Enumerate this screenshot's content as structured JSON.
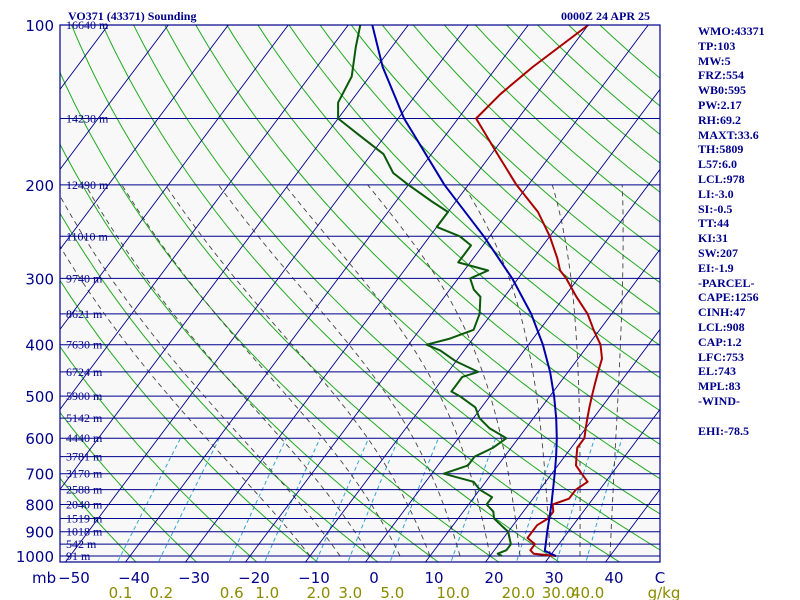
{
  "header": {
    "title": "VO371 (43371) Sounding",
    "datetime": "0000Z 24 APR 25"
  },
  "indices": [
    "WMO:43371",
    "TP:103",
    "MW:5",
    "FRZ:554",
    "WB0:595",
    "PW:2.17",
    "RH:69.2",
    "MAXT:33.6",
    "TH:5809",
    "L57:6.0",
    "LCL:978",
    "LI:-3.0",
    "SI:-0.5",
    "TT:44",
    "KI:31",
    "SW:207",
    "EI:-1.9",
    "-PARCEL-",
    "CAPE:1256",
    "CINH:47",
    "LCL:908",
    "CAP:1.2",
    "LFC:753",
    "EL:743",
    "MPL:83",
    "-WIND-",
    "",
    "EHI:-78.5"
  ],
  "colors": {
    "background": "#ffffff",
    "plot_area": "#f7f8f7",
    "isobar": "#00008b",
    "isotherm": "#00008b",
    "dry_adiabat": "#22aa22",
    "moist_adiabat": "#444444",
    "mixing_ratio": "#33a5d4",
    "temperature": "#aa0000",
    "dewpoint": "#0b5a0b",
    "parcel": "#0000aa",
    "text": "#00008b",
    "mixing_label": "#8b8b00"
  },
  "chart_data": {
    "type": "line",
    "subtype": "skew-t log-p sounding",
    "y_axis_scale": "log",
    "pressure_unit": "mb",
    "temperature_unit": "C",
    "mixing_ratio_unit": "g/kg",
    "xlim": [
      -50,
      50
    ],
    "ylim": [
      1000,
      100
    ],
    "pressure_ticks": [
      100,
      200,
      300,
      400,
      500,
      600,
      700,
      800,
      900,
      1000
    ],
    "temperature_ticks": [
      -50,
      -40,
      -30,
      -20,
      -10,
      0,
      10,
      20,
      30,
      40
    ],
    "mixing_ratio_ticks": [
      "0.1",
      "0.2",
      "0.6",
      "1.0",
      "2.0",
      "3.0",
      "5.0",
      "10.0",
      "20.0",
      "30.0",
      "40.0"
    ],
    "mixing_ratio_values": [
      0.1,
      0.2,
      0.6,
      1.0,
      2.0,
      3.0,
      5.0,
      10.0,
      20.0,
      30.0,
      40.0
    ],
    "height_levels": [
      {
        "p": 100,
        "label": "16640 m"
      },
      {
        "p": 150,
        "label": "14230 m"
      },
      {
        "p": 200,
        "label": "12490 m"
      },
      {
        "p": 250,
        "label": "11010 m"
      },
      {
        "p": 300,
        "label": "9740 m"
      },
      {
        "p": 350,
        "label": "8621 m"
      },
      {
        "p": 400,
        "label": "7630 m"
      },
      {
        "p": 450,
        "label": "6724 m"
      },
      {
        "p": 500,
        "label": "5900 m"
      },
      {
        "p": 550,
        "label": "5142 m"
      },
      {
        "p": 600,
        "label": "4440 m"
      },
      {
        "p": 650,
        "label": "3781 m"
      },
      {
        "p": 700,
        "label": "3170 m"
      },
      {
        "p": 750,
        "label": "2588 m"
      },
      {
        "p": 800,
        "label": "2040 m"
      },
      {
        "p": 850,
        "label": "1519 m"
      },
      {
        "p": 900,
        "label": "1018 m"
      },
      {
        "p": 950,
        "label": "542 m"
      },
      {
        "p": 1000,
        "label": "91 m"
      }
    ],
    "series": [
      {
        "key": "temperature",
        "points": [
          [
            1000,
            31
          ],
          [
            990,
            27
          ],
          [
            975,
            26
          ],
          [
            950,
            26
          ],
          [
            925,
            24
          ],
          [
            900,
            24
          ],
          [
            875,
            24
          ],
          [
            850,
            25
          ],
          [
            825,
            25
          ],
          [
            800,
            24
          ],
          [
            780,
            26
          ],
          [
            750,
            26
          ],
          [
            725,
            27
          ],
          [
            700,
            25
          ],
          [
            675,
            23
          ],
          [
            650,
            22
          ],
          [
            625,
            21
          ],
          [
            600,
            21
          ],
          [
            575,
            20
          ],
          [
            550,
            19
          ],
          [
            525,
            18
          ],
          [
            500,
            17
          ],
          [
            475,
            16
          ],
          [
            450,
            15
          ],
          [
            425,
            14
          ],
          [
            400,
            12
          ],
          [
            375,
            9
          ],
          [
            350,
            6
          ],
          [
            325,
            2
          ],
          [
            300,
            -2
          ],
          [
            290,
            -4
          ],
          [
            275,
            -6
          ],
          [
            250,
            -10
          ],
          [
            225,
            -15
          ],
          [
            200,
            -22
          ],
          [
            175,
            -29
          ],
          [
            150,
            -37
          ],
          [
            135,
            -36
          ],
          [
            120,
            -34
          ],
          [
            100,
            -30
          ]
        ]
      },
      {
        "key": "dewpoint",
        "points": [
          [
            1000,
            22
          ],
          [
            990,
            21
          ],
          [
            975,
            22
          ],
          [
            950,
            22
          ],
          [
            925,
            21
          ],
          [
            900,
            20
          ],
          [
            875,
            18
          ],
          [
            850,
            16
          ],
          [
            825,
            15
          ],
          [
            800,
            13
          ],
          [
            775,
            13
          ],
          [
            750,
            10
          ],
          [
            725,
            8
          ],
          [
            700,
            2
          ],
          [
            675,
            5
          ],
          [
            650,
            5
          ],
          [
            625,
            7
          ],
          [
            600,
            8
          ],
          [
            575,
            4
          ],
          [
            550,
            1
          ],
          [
            525,
            -1
          ],
          [
            500,
            -5
          ],
          [
            490,
            -7
          ],
          [
            475,
            -7
          ],
          [
            460,
            -7
          ],
          [
            450,
            -5
          ],
          [
            430,
            -10
          ],
          [
            410,
            -14
          ],
          [
            400,
            -17
          ],
          [
            390,
            -14
          ],
          [
            375,
            -11
          ],
          [
            350,
            -12
          ],
          [
            325,
            -14
          ],
          [
            315,
            -16
          ],
          [
            300,
            -18
          ],
          [
            290,
            -16
          ],
          [
            280,
            -22
          ],
          [
            270,
            -22
          ],
          [
            260,
            -22
          ],
          [
            250,
            -25
          ],
          [
            240,
            -30
          ],
          [
            225,
            -30
          ],
          [
            215,
            -34
          ],
          [
            200,
            -40
          ],
          [
            190,
            -44
          ],
          [
            175,
            -48
          ],
          [
            160,
            -55
          ],
          [
            150,
            -60
          ],
          [
            140,
            -62
          ],
          [
            125,
            -63
          ],
          [
            110,
            -66
          ],
          [
            100,
            -68
          ]
        ]
      },
      {
        "key": "parcel",
        "points": [
          [
            1000,
            31
          ],
          [
            978,
            28.5
          ],
          [
            950,
            27.8
          ],
          [
            900,
            26.5
          ],
          [
            850,
            25.2
          ],
          [
            800,
            23.8
          ],
          [
            750,
            22.2
          ],
          [
            700,
            20.5
          ],
          [
            650,
            18.6
          ],
          [
            600,
            16.4
          ],
          [
            550,
            13.8
          ],
          [
            500,
            10.7
          ],
          [
            450,
            7.0
          ],
          [
            400,
            2.4
          ],
          [
            350,
            -3.4
          ],
          [
            300,
            -11
          ],
          [
            250,
            -21
          ],
          [
            200,
            -34
          ],
          [
            150,
            -49
          ],
          [
            120,
            -59
          ],
          [
            100,
            -66
          ]
        ]
      }
    ]
  }
}
